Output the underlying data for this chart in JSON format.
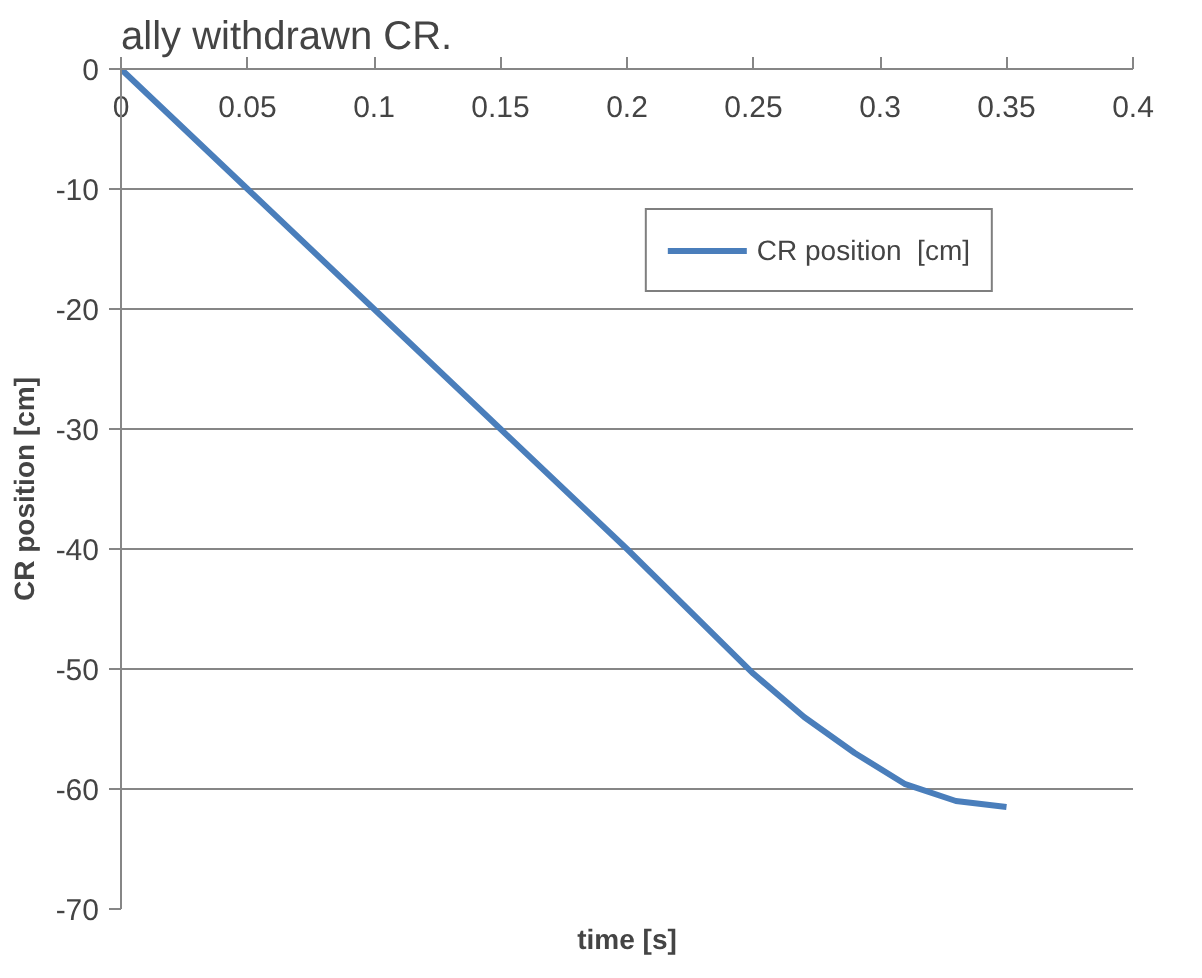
{
  "chart_data": {
    "type": "line",
    "title": "ally withdrawn CR.",
    "xlabel": "time [s]",
    "ylabel": "CR position [cm]",
    "x": [
      0,
      0.05,
      0.1,
      0.15,
      0.2,
      0.25,
      0.27,
      0.29,
      0.31,
      0.33,
      0.35
    ],
    "series": [
      {
        "name": "CR position  [cm]",
        "color": "#4a7ebb",
        "values": [
          0,
          -10,
          -20,
          -30,
          -40,
          -50.4,
          -54,
          -57,
          -59.6,
          -61,
          -61.5
        ]
      }
    ],
    "xlim": [
      0,
      0.4
    ],
    "xticks": [
      0,
      0.05,
      0.1,
      0.15,
      0.2,
      0.25,
      0.3,
      0.35,
      0.4
    ],
    "ylim": [
      -70,
      0
    ],
    "yticks": [
      -70,
      -60,
      -50,
      -40,
      -30,
      -20,
      -10,
      0
    ],
    "grid": "y",
    "legend": "top right",
    "marker": "none",
    "line_style": "solid"
  }
}
